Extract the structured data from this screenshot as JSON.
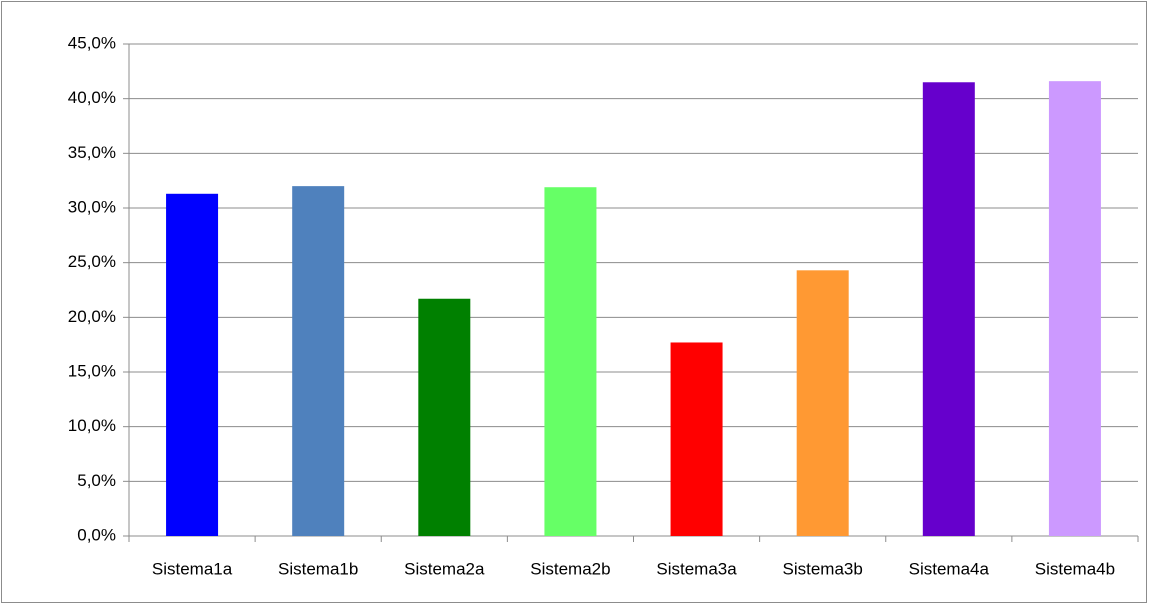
{
  "chart_data": {
    "type": "bar",
    "categories": [
      "Sistema1a",
      "Sistema1b",
      "Sistema2a",
      "Sistema2b",
      "Sistema3a",
      "Sistema3b",
      "Sistema4a",
      "Sistema4b"
    ],
    "values": [
      31.3,
      32.0,
      21.7,
      31.9,
      17.7,
      24.3,
      41.5,
      41.6
    ],
    "colors": [
      "#0000ff",
      "#4f81bd",
      "#008000",
      "#66ff66",
      "#ff0000",
      "#ff9933",
      "#6600cc",
      "#cc99ff"
    ],
    "ylim": [
      0,
      45
    ],
    "yticks": [
      {
        "value": 0,
        "label": "0,0%"
      },
      {
        "value": 5,
        "label": "5,0%"
      },
      {
        "value": 10,
        "label": "10,0%"
      },
      {
        "value": 15,
        "label": "15,0%"
      },
      {
        "value": 20,
        "label": "20,0%"
      },
      {
        "value": 25,
        "label": "25,0%"
      },
      {
        "value": 30,
        "label": "30,0%"
      },
      {
        "value": 35,
        "label": "35,0%"
      },
      {
        "value": 40,
        "label": "40,0%"
      },
      {
        "value": 45,
        "label": "45,0%"
      }
    ],
    "grid": true
  }
}
